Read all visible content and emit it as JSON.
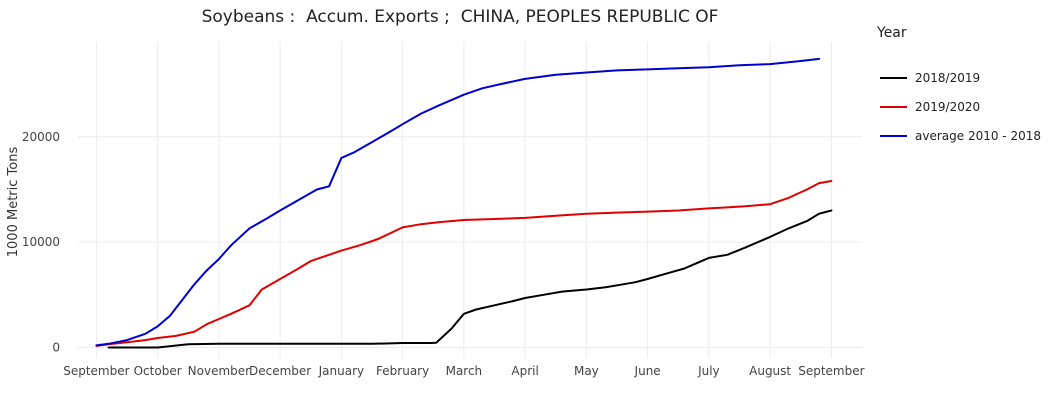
{
  "chart_data": {
    "type": "line",
    "title": "Soybeans :  Accum. Exports ;  CHINA, PEOPLES REPUBLIC OF",
    "xlabel": "",
    "ylabel": "1000 Metric Tons",
    "legend_title": "Year",
    "legend_position": "right",
    "grid": true,
    "ylim": [
      -1000,
      29000
    ],
    "y_ticks": [
      0,
      10000,
      20000
    ],
    "y_tick_labels": [
      "0",
      "10000",
      "20000"
    ],
    "x_range": [
      -0.3,
      12.5
    ],
    "x_ticks": [
      0,
      1,
      2,
      3,
      4,
      5,
      6,
      7,
      8,
      9,
      10,
      11,
      12
    ],
    "x_tick_labels": [
      "September",
      "October",
      "November",
      "December",
      "January",
      "February",
      "March",
      "April",
      "May",
      "June",
      "July",
      "August",
      "September"
    ],
    "series": [
      {
        "name": "2018/2019",
        "color": "#000000",
        "x": [
          0.2,
          0.5,
          1.0,
          1.5,
          2.0,
          2.5,
          3.0,
          3.5,
          4.0,
          4.5,
          5.0,
          5.45,
          5.55,
          5.8,
          6.0,
          6.2,
          6.5,
          6.8,
          7.0,
          7.3,
          7.6,
          8.0,
          8.3,
          8.6,
          8.8,
          9.0,
          9.3,
          9.6,
          9.8,
          10.0,
          10.3,
          10.6,
          11.0,
          11.3,
          11.6,
          11.8,
          12.0
        ],
        "values": [
          0,
          0,
          0,
          300,
          350,
          350,
          350,
          350,
          350,
          350,
          420,
          420,
          450,
          1800,
          3200,
          3600,
          4000,
          4400,
          4700,
          5000,
          5300,
          5500,
          5700,
          6000,
          6200,
          6500,
          7000,
          7500,
          8000,
          8500,
          8800,
          9500,
          10500,
          11300,
          12000,
          12700,
          13000
        ]
      },
      {
        "name": "2019/2020",
        "color": "#e00000",
        "x": [
          0.0,
          0.2,
          0.5,
          0.8,
          1.0,
          1.3,
          1.6,
          1.8,
          2.0,
          2.2,
          2.5,
          2.7,
          3.0,
          3.3,
          3.5,
          3.8,
          4.0,
          4.3,
          4.6,
          5.0,
          5.3,
          5.6,
          6.0,
          6.5,
          7.0,
          7.5,
          8.0,
          8.5,
          9.0,
          9.5,
          10.0,
          10.3,
          10.6,
          11.0,
          11.3,
          11.6,
          11.8,
          12.0
        ],
        "values": [
          150,
          300,
          500,
          700,
          900,
          1100,
          1500,
          2200,
          2700,
          3200,
          4000,
          5500,
          6500,
          7500,
          8200,
          8800,
          9200,
          9700,
          10300,
          11400,
          11700,
          11900,
          12100,
          12200,
          12300,
          12500,
          12700,
          12800,
          12900,
          13000,
          13200,
          13300,
          13400,
          13600,
          14200,
          15000,
          15600,
          15800
        ]
      },
      {
        "name": "average 2010 - 2018",
        "color": "#0000d0",
        "x": [
          0.0,
          0.2,
          0.5,
          0.8,
          1.0,
          1.2,
          1.4,
          1.6,
          1.8,
          2.0,
          2.2,
          2.5,
          2.8,
          3.0,
          3.3,
          3.6,
          3.8,
          4.0,
          4.2,
          4.5,
          4.8,
          5.0,
          5.3,
          5.6,
          6.0,
          6.3,
          6.6,
          7.0,
          7.5,
          8.0,
          8.5,
          9.0,
          9.5,
          10.0,
          10.5,
          11.0,
          11.5,
          11.8
        ],
        "values": [
          200,
          350,
          700,
          1300,
          2000,
          3000,
          4500,
          6000,
          7300,
          8400,
          9700,
          11300,
          12300,
          13000,
          14000,
          15000,
          15300,
          18000,
          18500,
          19500,
          20500,
          21200,
          22200,
          23000,
          24000,
          24600,
          25000,
          25500,
          25900,
          26100,
          26300,
          26400,
          26500,
          26600,
          26800,
          26900,
          27200,
          27400
        ]
      }
    ]
  }
}
